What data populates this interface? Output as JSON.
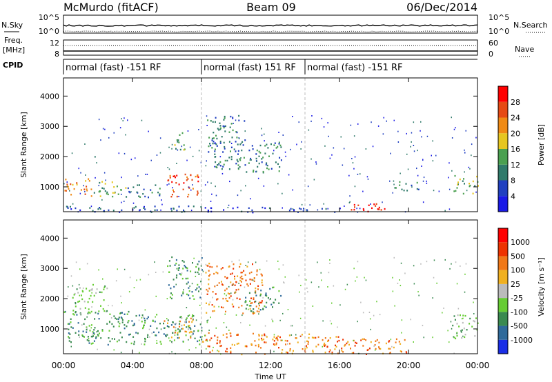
{
  "chart_data": {
    "type": "heatmap",
    "header": {
      "radar": "McMurdo (fitACF)",
      "beam": "Beam 09",
      "date": "06/Dec/2014"
    },
    "top_panels": {
      "left_labels": [
        "N.Sky",
        "Freq.",
        "[MHz]",
        "CPID"
      ],
      "right_labels": [
        "N.Search",
        "Nave"
      ],
      "left_ticks_row1": [
        "10^5",
        "10^0"
      ],
      "right_ticks_row1": [
        "10^5",
        "10^0"
      ],
      "left_ticks_row2": [
        "12",
        "8"
      ],
      "right_ticks_row2": [
        "60",
        "0"
      ]
    },
    "cpid_segments": [
      {
        "label": "normal (fast) -151 RF",
        "start_hour": 0,
        "end_hour": 8
      },
      {
        "label": "normal (fast) 151 RF",
        "start_hour": 8,
        "end_hour": 14
      },
      {
        "label": "normal (fast) -151 RF",
        "start_hour": 14,
        "end_hour": 24
      }
    ],
    "xaxis": {
      "label": "Time UT",
      "ticks": [
        "00:00",
        "04:00",
        "08:00",
        "12:00",
        "16:00",
        "20:00",
        "00:00"
      ],
      "range_hours": [
        0,
        24
      ]
    },
    "yaxis": {
      "label": "Slant Range [km]",
      "ticks": [
        "1000",
        "2000",
        "3000",
        "4000"
      ],
      "range_km": [
        180,
        4600
      ]
    },
    "panels": [
      {
        "name": "power",
        "colorbar_label": "Power [dB]",
        "colorbar_ticks": [
          "28",
          "24",
          "20",
          "16",
          "12",
          "8",
          "4"
        ],
        "colors": [
          "#1a1ae6",
          "#2040c0",
          "#2f7a6a",
          "#4aa050",
          "#e6c620",
          "#f08a14",
          "#e64a14",
          "#ff0000"
        ],
        "regions": [
          {
            "t": [
              0.0,
              1.6
            ],
            "r": [
              700,
              1300
            ],
            "level": 5
          },
          {
            "t": [
              1.6,
              3.6
            ],
            "r": [
              700,
              1200
            ],
            "level": 3
          },
          {
            "t": [
              3.6,
              5.6
            ],
            "r": [
              650,
              1100
            ],
            "level": 2
          },
          {
            "t": [
              5.8,
              7.9
            ],
            "r": [
              700,
              1450
            ],
            "level": 6
          },
          {
            "t": [
              6.4,
              7.0
            ],
            "r": [
              2100,
              2900
            ],
            "level": 3
          },
          {
            "t": [
              8.3,
              10.5
            ],
            "r": [
              1600,
              3400
            ],
            "level": 2
          },
          {
            "t": [
              10.5,
              12.6
            ],
            "r": [
              1500,
              2500
            ],
            "level": 2
          },
          {
            "t": [
              0.0,
              8.0
            ],
            "r": [
              180,
              400
            ],
            "level": 1
          },
          {
            "t": [
              8.0,
              16.0
            ],
            "r": [
              180,
              350
            ],
            "level": 1
          },
          {
            "t": [
              16.5,
              18.8
            ],
            "r": [
              180,
              500
            ],
            "level": 7
          },
          {
            "t": [
              19.0,
              20.6
            ],
            "r": [
              900,
              1200
            ],
            "level": 2
          },
          {
            "t": [
              22.6,
              24.0
            ],
            "r": [
              800,
              1400
            ],
            "level": 3
          }
        ]
      },
      {
        "name": "velocity",
        "colorbar_label": "Velocity [m s⁻¹]",
        "colorbar_ticks": [
          "1000",
          "500",
          "100",
          "25",
          "-25",
          "-100",
          "-500",
          "-1000"
        ],
        "colors": [
          "#1a2ee6",
          "#2f6a9a",
          "#3a8a50",
          "#66cc33",
          "#bbbbbb",
          "#f0b020",
          "#f07818",
          "#ee3300",
          "#ff0000"
        ],
        "regions": [
          {
            "t": [
              0.0,
              4.0
            ],
            "r": [
              500,
              1600
            ],
            "level": 2
          },
          {
            "t": [
              0.5,
              2.5
            ],
            "r": [
              1500,
              2500
            ],
            "level": 3
          },
          {
            "t": [
              4.0,
              8.0
            ],
            "r": [
              500,
              1500
            ],
            "level": 2
          },
          {
            "t": [
              5.8,
              7.5
            ],
            "r": [
              700,
              1400
            ],
            "level": 5
          },
          {
            "t": [
              6.0,
              8.0
            ],
            "r": [
              2000,
              3400
            ],
            "level": 2
          },
          {
            "t": [
              8.2,
              11.5
            ],
            "r": [
              1500,
              3200
            ],
            "level": 6
          },
          {
            "t": [
              10.5,
              12.6
            ],
            "r": [
              1600,
              2400
            ],
            "level": 2
          },
          {
            "t": [
              8.0,
              16.0
            ],
            "r": [
              180,
              900
            ],
            "level": 6
          },
          {
            "t": [
              16.0,
              20.0
            ],
            "r": [
              180,
              700
            ],
            "level": 6
          },
          {
            "t": [
              22.5,
              24.0
            ],
            "r": [
              700,
              1500
            ],
            "level": 3
          }
        ]
      }
    ]
  }
}
